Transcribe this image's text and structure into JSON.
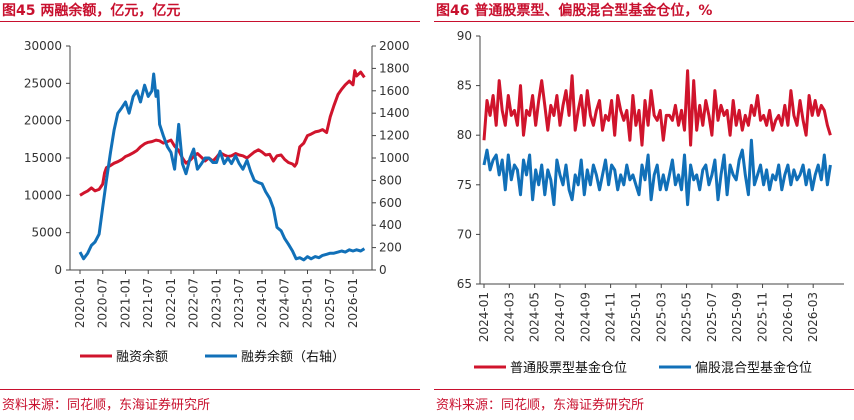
{
  "colors": {
    "red": "#d0142c",
    "blue": "#1170b8",
    "title": "#c8102e"
  },
  "left": {
    "title": "图45  两融余额，亿元，亿元",
    "source": "资料来源：同花顺，东海证券研究所",
    "chart_data": {
      "type": "line",
      "left_axis": {
        "ticks": [
          0,
          5000,
          10000,
          15000,
          20000,
          25000,
          30000
        ],
        "ylim": [
          0,
          30000
        ]
      },
      "right_axis": {
        "ticks": [
          0,
          200,
          400,
          600,
          800,
          1000,
          1200,
          1400,
          1600,
          1800,
          2000
        ],
        "ylim": [
          0,
          2000
        ]
      },
      "x_range": [
        2020.0,
        2026.33
      ],
      "x_ticks": [
        "2020-01",
        "2020-07",
        "2021-01",
        "2021-07",
        "2022-01",
        "2022-07",
        "2023-01",
        "2023-07",
        "2024-01",
        "2024-07",
        "2025-01",
        "2025-07",
        "2026-01"
      ],
      "series": [
        {
          "name": "融资余额",
          "axis": "left",
          "color": "#d0142c",
          "x": [
            2020.0,
            2020.08,
            2020.17,
            2020.25,
            2020.33,
            2020.42,
            2020.5,
            2020.54,
            2020.58,
            2020.67,
            2020.75,
            2020.83,
            2020.92,
            2021.0,
            2021.08,
            2021.17,
            2021.25,
            2021.33,
            2021.42,
            2021.5,
            2021.58,
            2021.67,
            2021.75,
            2021.83,
            2021.92,
            2022.0,
            2022.08,
            2022.17,
            2022.25,
            2022.33,
            2022.42,
            2022.5,
            2022.58,
            2022.67,
            2022.75,
            2022.83,
            2022.92,
            2023.0,
            2023.08,
            2023.17,
            2023.25,
            2023.33,
            2023.42,
            2023.5,
            2023.58,
            2023.67,
            2023.75,
            2023.83,
            2023.92,
            2024.0,
            2024.08,
            2024.17,
            2024.25,
            2024.33,
            2024.42,
            2024.5,
            2024.58,
            2024.67,
            2024.72,
            2024.76,
            2024.83,
            2024.92,
            2025.0,
            2025.08,
            2025.17,
            2025.25,
            2025.33,
            2025.42,
            2025.5,
            2025.58,
            2025.67,
            2025.75,
            2025.83,
            2025.92,
            2026.0,
            2026.04,
            2026.08,
            2026.17,
            2026.25
          ],
          "y": [
            10000,
            10300,
            10600,
            11000,
            10600,
            10800,
            11500,
            13000,
            13700,
            14000,
            14300,
            14500,
            14800,
            15200,
            15400,
            15700,
            16000,
            16500,
            16900,
            17100,
            17200,
            17400,
            17300,
            17000,
            17200,
            17400,
            16600,
            16000,
            15000,
            14300,
            14700,
            15200,
            15600,
            15100,
            14600,
            15000,
            14600,
            15100,
            15700,
            15400,
            15200,
            15300,
            15600,
            15400,
            15300,
            15000,
            15400,
            15800,
            16100,
            15800,
            15400,
            15500,
            14600,
            15300,
            15400,
            14800,
            14400,
            14200,
            13900,
            14300,
            16500,
            17000,
            18000,
            18200,
            18500,
            18600,
            18800,
            18400,
            20500,
            22000,
            23500,
            24200,
            24800,
            25300,
            24800,
            26700,
            26000,
            26500,
            25800
          ]
        },
        {
          "name": "融券余额（右轴）",
          "axis": "right",
          "color": "#1170b8",
          "x": [
            2020.0,
            2020.08,
            2020.17,
            2020.25,
            2020.33,
            2020.42,
            2020.5,
            2020.58,
            2020.67,
            2020.75,
            2020.83,
            2020.92,
            2021.0,
            2021.08,
            2021.17,
            2021.25,
            2021.33,
            2021.42,
            2021.5,
            2021.58,
            2021.62,
            2021.67,
            2021.71,
            2021.75,
            2021.83,
            2021.92,
            2022.0,
            2022.08,
            2022.17,
            2022.25,
            2022.33,
            2022.42,
            2022.5,
            2022.58,
            2022.67,
            2022.75,
            2022.83,
            2022.92,
            2023.0,
            2023.08,
            2023.17,
            2023.25,
            2023.33,
            2023.42,
            2023.5,
            2023.58,
            2023.67,
            2023.75,
            2023.83,
            2023.92,
            2024.0,
            2024.08,
            2024.17,
            2024.25,
            2024.33,
            2024.42,
            2024.5,
            2024.58,
            2024.67,
            2024.75,
            2024.83,
            2024.92,
            2025.0,
            2025.08,
            2025.17,
            2025.25,
            2025.33,
            2025.42,
            2025.5,
            2025.58,
            2025.67,
            2025.75,
            2025.83,
            2025.92,
            2026.0,
            2026.08,
            2026.17,
            2026.25
          ],
          "y": [
            160,
            100,
            150,
            220,
            250,
            320,
            560,
            800,
            1050,
            1250,
            1400,
            1450,
            1500,
            1400,
            1550,
            1600,
            1500,
            1650,
            1550,
            1600,
            1750,
            1550,
            1600,
            1300,
            1200,
            1100,
            1050,
            900,
            1300,
            950,
            860,
            1000,
            1080,
            900,
            950,
            1000,
            1000,
            960,
            960,
            1060,
            950,
            1000,
            950,
            1020,
            950,
            900,
            980,
            880,
            800,
            780,
            770,
            700,
            640,
            550,
            380,
            350,
            280,
            230,
            170,
            100,
            110,
            90,
            120,
            100,
            120,
            110,
            130,
            140,
            150,
            150,
            160,
            170,
            160,
            180,
            170,
            180,
            170,
            190
          ]
        }
      ]
    },
    "legend": [
      "融资余额",
      "融券余额（右轴）"
    ]
  },
  "right": {
    "title": "图46  普通股票型、偏股混合型基金仓位，%",
    "source": "资料来源：同花顺，东海证券研究所",
    "chart_data": {
      "type": "line",
      "y_axis": {
        "ticks": [
          65,
          70,
          75,
          80,
          85,
          90
        ],
        "ylim": [
          65,
          90
        ]
      },
      "x_range": [
        2024.0,
        2026.33
      ],
      "x_ticks": [
        "2024-01",
        "2024-03",
        "2024-05",
        "2024-07",
        "2024-09",
        "2024-11",
        "2025-01",
        "2025-03",
        "2025-05",
        "2025-07",
        "2025-09",
        "2025-11",
        "2026-01",
        "2026-03"
      ],
      "series": [
        {
          "name": "普通股票型基金仓位",
          "color": "#d0142c",
          "x": [
            2024.0,
            2024.02,
            2024.04,
            2024.06,
            2024.08,
            2024.1,
            2024.12,
            2024.14,
            2024.16,
            2024.18,
            2024.2,
            2024.22,
            2024.24,
            2024.26,
            2024.28,
            2024.3,
            2024.32,
            2024.34,
            2024.36,
            2024.38,
            2024.4,
            2024.42,
            2024.44,
            2024.46,
            2024.48,
            2024.5,
            2024.52,
            2024.54,
            2024.56,
            2024.58,
            2024.6,
            2024.62,
            2024.64,
            2024.66,
            2024.68,
            2024.7,
            2024.72,
            2024.74,
            2024.76,
            2024.78,
            2024.8,
            2024.82,
            2024.84,
            2024.86,
            2024.88,
            2024.9,
            2024.92,
            2024.94,
            2024.96,
            2024.98,
            2025.0,
            2025.02,
            2025.04,
            2025.06,
            2025.08,
            2025.1,
            2025.12,
            2025.14,
            2025.16,
            2025.18,
            2025.2,
            2025.22,
            2025.24,
            2025.26,
            2025.28,
            2025.3,
            2025.32,
            2025.34,
            2025.36,
            2025.38,
            2025.4,
            2025.42,
            2025.44,
            2025.46,
            2025.48,
            2025.5,
            2025.52,
            2025.54,
            2025.56,
            2025.58,
            2025.6,
            2025.62,
            2025.64,
            2025.66,
            2025.68,
            2025.7,
            2025.72,
            2025.74,
            2025.76,
            2025.78,
            2025.8,
            2025.82,
            2025.84,
            2025.86,
            2025.88,
            2025.9,
            2025.92,
            2025.94,
            2025.96,
            2025.98,
            2026.0,
            2026.02,
            2026.04,
            2026.06,
            2026.08,
            2026.1,
            2026.12,
            2026.14,
            2026.16,
            2026.18,
            2026.2,
            2026.22,
            2026.24,
            2026.26,
            2026.28
          ],
          "y": [
            79.5,
            83.5,
            82,
            84,
            81,
            85.5,
            82.5,
            81,
            84,
            82,
            82.5,
            81,
            85,
            80,
            82.5,
            82,
            84,
            81,
            83.5,
            85.5,
            83,
            80.5,
            83,
            82,
            84,
            81,
            83,
            84.5,
            82,
            86,
            80.5,
            82.5,
            84,
            81,
            84.5,
            82,
            81,
            82.5,
            83.5,
            80.5,
            82,
            81.5,
            83.5,
            80,
            84,
            82.5,
            81.5,
            82.5,
            79.5,
            84,
            81,
            82.5,
            79,
            83.5,
            81,
            84.5,
            82,
            81.5,
            82.5,
            79.5,
            82,
            82,
            81.5,
            83,
            81,
            82.5,
            80.5,
            86.5,
            79,
            85.5,
            80.5,
            83,
            81,
            83.5,
            82,
            80,
            84.5,
            81.5,
            83,
            82,
            82.5,
            80,
            83.5,
            81,
            82.5,
            80.5,
            82,
            81,
            83,
            82,
            84,
            81.5,
            82,
            81,
            82.5,
            80.5,
            81.5,
            82,
            81,
            83,
            81,
            84.5,
            82,
            81,
            83.5,
            81.5,
            80,
            84,
            82,
            83.5,
            82,
            83,
            82.5,
            81,
            80
          ]
        },
        {
          "name": "偏股混合型基金仓位",
          "color": "#1170b8",
          "x": [
            2024.0,
            2024.02,
            2024.04,
            2024.06,
            2024.08,
            2024.1,
            2024.12,
            2024.14,
            2024.16,
            2024.18,
            2024.2,
            2024.22,
            2024.24,
            2024.26,
            2024.28,
            2024.3,
            2024.32,
            2024.34,
            2024.36,
            2024.38,
            2024.4,
            2024.42,
            2024.44,
            2024.46,
            2024.48,
            2024.5,
            2024.52,
            2024.54,
            2024.56,
            2024.58,
            2024.6,
            2024.62,
            2024.64,
            2024.66,
            2024.68,
            2024.7,
            2024.72,
            2024.74,
            2024.76,
            2024.78,
            2024.8,
            2024.82,
            2024.84,
            2024.86,
            2024.88,
            2024.9,
            2024.92,
            2024.94,
            2024.96,
            2024.98,
            2025.0,
            2025.02,
            2025.04,
            2025.06,
            2025.08,
            2025.1,
            2025.12,
            2025.14,
            2025.16,
            2025.18,
            2025.2,
            2025.22,
            2025.24,
            2025.26,
            2025.28,
            2025.3,
            2025.32,
            2025.34,
            2025.36,
            2025.38,
            2025.4,
            2025.42,
            2025.44,
            2025.46,
            2025.48,
            2025.5,
            2025.52,
            2025.54,
            2025.56,
            2025.58,
            2025.6,
            2025.62,
            2025.64,
            2025.66,
            2025.68,
            2025.7,
            2025.72,
            2025.74,
            2025.76,
            2025.78,
            2025.8,
            2025.82,
            2025.84,
            2025.86,
            2025.88,
            2025.9,
            2025.92,
            2025.94,
            2025.96,
            2025.98,
            2026.0,
            2026.02,
            2026.04,
            2026.06,
            2026.08,
            2026.1,
            2026.12,
            2026.14,
            2026.16,
            2026.18,
            2026.2,
            2026.22,
            2026.24,
            2026.26,
            2026.28
          ],
          "y": [
            77,
            78.5,
            76.5,
            77.5,
            78,
            76,
            77.5,
            74.5,
            78,
            75.5,
            77,
            76.5,
            74,
            77.5,
            76,
            78,
            73.5,
            76.5,
            75,
            77,
            74,
            76.5,
            75.5,
            73,
            77.5,
            76,
            75,
            77,
            74.5,
            73.5,
            76,
            75,
            77.5,
            74,
            76.5,
            75,
            77,
            76,
            74.5,
            76,
            77.5,
            75,
            77,
            76.5,
            74.5,
            76,
            75,
            77,
            75.5,
            76,
            75,
            74,
            77,
            75.5,
            78,
            73.5,
            76,
            77,
            74.5,
            76,
            74.5,
            76,
            77.5,
            75,
            76,
            74.5,
            78,
            73,
            77,
            75.5,
            76,
            74.5,
            76.5,
            77,
            75,
            76,
            77.5,
            73.5,
            76,
            78,
            74,
            77,
            76,
            75.5,
            77.5,
            78.5,
            76,
            74,
            79.5,
            75,
            76,
            77,
            75,
            76.5,
            74.5,
            76,
            75.5,
            77,
            74.5,
            76,
            77,
            75,
            76.5,
            75.5,
            76,
            77,
            75,
            76.5,
            74.5,
            76,
            77,
            75.5,
            78,
            75,
            77
          ]
        }
      ]
    },
    "legend": [
      "普通股票型基金仓位",
      "偏股混合型基金仓位"
    ]
  }
}
